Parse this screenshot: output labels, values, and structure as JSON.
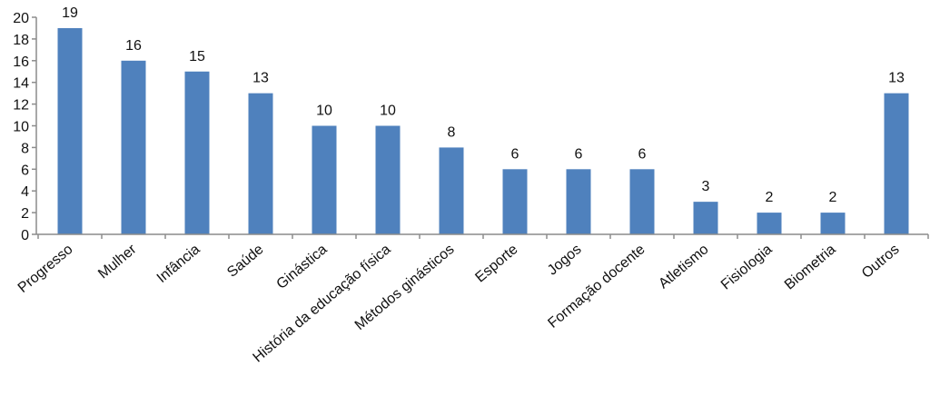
{
  "chart_data": {
    "type": "bar",
    "title": "",
    "xlabel": "",
    "ylabel": "",
    "categories": [
      "Progresso",
      "Mulher",
      "Infância",
      "Saúde",
      "Ginástica",
      "História da educação física",
      "Métodos ginásticos",
      "Esporte",
      "Jogos",
      "Formação docente",
      "Atletismo",
      "Fisiologia",
      "Biometria",
      "Outros"
    ],
    "values": [
      19,
      16,
      15,
      13,
      10,
      10,
      8,
      6,
      6,
      6,
      3,
      2,
      2,
      13
    ],
    "ylim": [
      0,
      20
    ],
    "yticks": [
      0,
      2,
      4,
      6,
      8,
      10,
      12,
      14,
      16,
      18,
      20
    ],
    "grid": false,
    "legend": "none",
    "data_labels": true,
    "bar_color": "#4f81bd",
    "axis_color": "#8c8c8c"
  }
}
